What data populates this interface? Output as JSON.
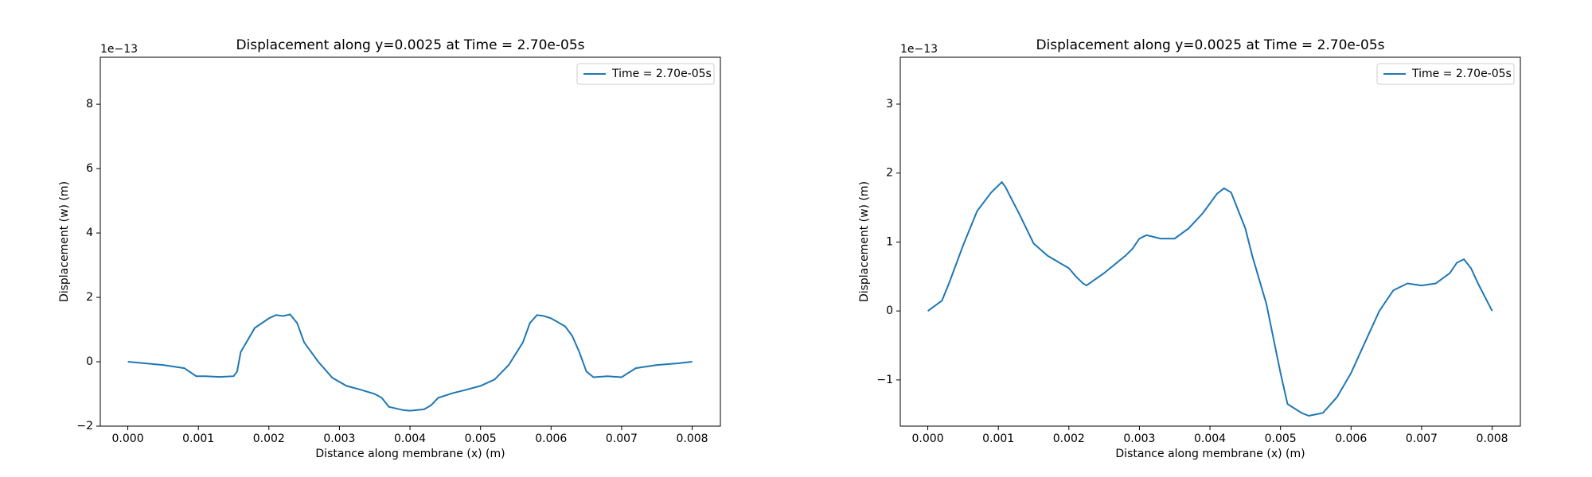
{
  "chart_data": [
    {
      "type": "line",
      "title": "Displacement along y=0.0025 at Time = 2.70e-05s",
      "x_label": "Distance along membrane (x) (m)",
      "y_label": "Displacement (w) (m)",
      "y_offset_label": "1e−13",
      "legend": "upper right",
      "xlim": [
        -0.00039,
        0.0084
      ],
      "ylim": [
        -2,
        9.46
      ],
      "xticks": [
        {
          "value": 0,
          "label": "0.000"
        },
        0.001,
        0.002,
        0.003,
        0.004,
        0.005,
        0.006,
        0.007,
        0.008
      ],
      "yticks": [
        {
          "value": -2,
          "label": "−2"
        },
        0,
        2,
        4,
        6,
        8
      ],
      "x": [
        0,
        0.0005,
        0.0008,
        0.00097,
        0.0011,
        0.0013,
        0.0015,
        0.00155,
        0.0016,
        0.0018,
        0.002,
        0.0021,
        0.0022,
        0.0023,
        0.0024,
        0.0025,
        0.0027,
        0.0029,
        0.0031,
        0.0033,
        0.0035,
        0.0036,
        0.0037,
        0.0039,
        0.004,
        0.0042,
        0.0043,
        0.0044,
        0.0046,
        0.0048,
        0.005,
        0.0052,
        0.0054,
        0.0056,
        0.0057,
        0.0058,
        0.0059,
        0.006,
        0.0062,
        0.0063,
        0.0064,
        0.0065,
        0.0066,
        0.0068,
        0.007,
        0.0072,
        0.0075,
        0.0078,
        0.008
      ],
      "series": [
        {
          "name": "Time = 2.70e-05s",
          "color": "#1f77b4",
          "values": [
            0,
            -0.1,
            -0.2,
            -0.45,
            -0.45,
            -0.47,
            -0.45,
            -0.3,
            0.3,
            1.05,
            1.35,
            1.45,
            1.42,
            1.47,
            1.2,
            0.6,
            0,
            -0.5,
            -0.75,
            -0.87,
            -1.0,
            -1.12,
            -1.4,
            -1.5,
            -1.52,
            -1.48,
            -1.35,
            -1.12,
            -0.98,
            -0.87,
            -0.75,
            -0.55,
            -0.1,
            0.6,
            1.2,
            1.45,
            1.42,
            1.35,
            1.1,
            0.8,
            0.3,
            -0.3,
            -0.48,
            -0.45,
            -0.48,
            -0.2,
            -0.1,
            -0.05,
            0
          ]
        }
      ]
    },
    {
      "type": "line",
      "title": "Displacement along y=0.0025 at Time = 2.70e-05s",
      "x_label": "Distance along membrane (x) (m)",
      "y_label": "Displacement (w) (m)",
      "y_offset_label": "1e−13",
      "legend": "upper right",
      "xlim": [
        -0.00039,
        0.0084
      ],
      "ylim": [
        -1.67,
        3.68
      ],
      "xticks": [
        {
          "value": 0,
          "label": "0.000"
        },
        0.001,
        0.002,
        0.003,
        0.004,
        0.005,
        0.006,
        0.007,
        0.008
      ],
      "yticks": [
        {
          "value": -1,
          "label": "−1"
        },
        0,
        1,
        2,
        3
      ],
      "x": [
        0,
        0.0002,
        0.0003,
        0.0005,
        0.0007,
        0.0009,
        0.00105,
        0.0011,
        0.0013,
        0.0015,
        0.0017,
        0.002,
        0.0021,
        0.0022,
        0.00225,
        0.0025,
        0.0028,
        0.0029,
        0.003,
        0.0031,
        0.0033,
        0.0035,
        0.0037,
        0.0039,
        0.0041,
        0.0042,
        0.0043,
        0.0045,
        0.0046,
        0.0048,
        0.005,
        0.0051,
        0.0053,
        0.0054,
        0.0056,
        0.0058,
        0.006,
        0.0062,
        0.0064,
        0.0066,
        0.0068,
        0.007,
        0.0072,
        0.0074,
        0.0075,
        0.0076,
        0.0077,
        0.0078,
        0.008
      ],
      "series": [
        {
          "name": "Time = 2.70e-05s",
          "color": "#1f77b4",
          "values": [
            0,
            0.15,
            0.4,
            0.95,
            1.45,
            1.72,
            1.87,
            1.8,
            1.4,
            0.98,
            0.8,
            0.62,
            0.5,
            0.4,
            0.37,
            0.55,
            0.8,
            0.9,
            1.05,
            1.1,
            1.05,
            1.05,
            1.2,
            1.42,
            1.7,
            1.78,
            1.72,
            1.2,
            0.8,
            0.1,
            -0.9,
            -1.35,
            -1.48,
            -1.52,
            -1.48,
            -1.25,
            -0.9,
            -0.45,
            0,
            0.3,
            0.4,
            0.37,
            0.4,
            0.55,
            0.7,
            0.75,
            0.62,
            0.4,
            0
          ]
        }
      ]
    }
  ]
}
